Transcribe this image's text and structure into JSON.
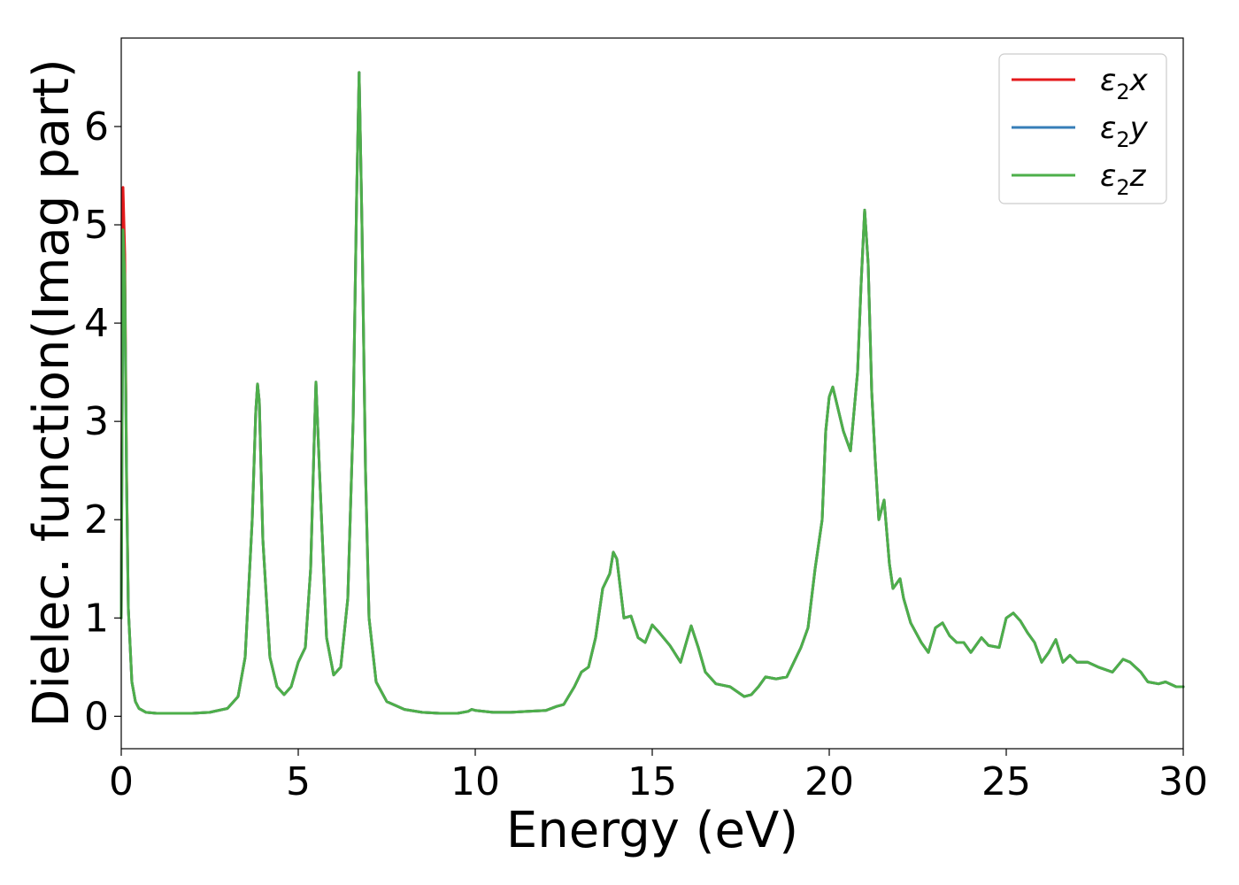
{
  "chart_data": {
    "type": "line",
    "title": "",
    "xlabel": "Energy (eV)",
    "ylabel": "Dielec. function(Imag part)",
    "xlim": [
      0,
      30
    ],
    "ylim": [
      -0.33,
      6.9
    ],
    "xticks": [
      0,
      5,
      10,
      15,
      20,
      25,
      30
    ],
    "yticks": [
      0,
      1,
      2,
      3,
      4,
      5,
      6
    ],
    "grid": false,
    "legend_position": "top-right",
    "colors": {
      "x": "#e41a1c",
      "y": "#377eb8",
      "z": "#4daf4a"
    },
    "legend": [
      {
        "sym": "ε",
        "sub": "2",
        "comp": "x"
      },
      {
        "sym": "ε",
        "sub": "2",
        "comp": "y"
      },
      {
        "sym": "ε",
        "sub": "2",
        "comp": "z"
      }
    ],
    "x": [
      0.0,
      0.05,
      0.1,
      0.15,
      0.2,
      0.3,
      0.4,
      0.5,
      0.7,
      1.0,
      1.5,
      2.0,
      2.5,
      3.0,
      3.3,
      3.5,
      3.7,
      3.8,
      3.85,
      3.9,
      4.0,
      4.2,
      4.4,
      4.6,
      4.8,
      5.0,
      5.2,
      5.35,
      5.45,
      5.5,
      5.6,
      5.8,
      6.0,
      6.2,
      6.4,
      6.55,
      6.65,
      6.72,
      6.8,
      6.9,
      7.0,
      7.2,
      7.5,
      8.0,
      8.5,
      9.0,
      9.5,
      9.8,
      9.9,
      10.0,
      10.5,
      11.0,
      11.5,
      12.0,
      12.3,
      12.5,
      12.8,
      13.0,
      13.2,
      13.4,
      13.6,
      13.8,
      13.9,
      14.0,
      14.2,
      14.4,
      14.6,
      14.8,
      15.0,
      15.2,
      15.5,
      15.8,
      16.0,
      16.1,
      16.3,
      16.5,
      16.8,
      17.2,
      17.6,
      17.8,
      18.0,
      18.2,
      18.5,
      18.8,
      19.0,
      19.2,
      19.4,
      19.6,
      19.8,
      19.9,
      20.0,
      20.1,
      20.2,
      20.4,
      20.6,
      20.8,
      20.9,
      21.0,
      21.1,
      21.2,
      21.3,
      21.4,
      21.55,
      21.7,
      21.8,
      22.0,
      22.1,
      22.3,
      22.6,
      22.8,
      23.0,
      23.2,
      23.4,
      23.6,
      23.8,
      24.0,
      24.3,
      24.5,
      24.8,
      25.0,
      25.2,
      25.4,
      25.6,
      25.8,
      26.0,
      26.2,
      26.4,
      26.6,
      26.8,
      27.0,
      27.3,
      27.6,
      28.0,
      28.3,
      28.5,
      28.8,
      29.0,
      29.3,
      29.5,
      29.8,
      30.0
    ],
    "series": [
      {
        "name": "x",
        "values": [
          1.0,
          5.38,
          4.7,
          2.5,
          1.1,
          0.35,
          0.15,
          0.08,
          0.04,
          0.03,
          0.03,
          0.03,
          0.04,
          0.08,
          0.2,
          0.6,
          2.0,
          3.1,
          3.38,
          3.2,
          1.8,
          0.6,
          0.3,
          0.22,
          0.3,
          0.55,
          0.7,
          1.5,
          2.8,
          3.4,
          2.5,
          0.8,
          0.42,
          0.5,
          1.2,
          3.0,
          5.3,
          6.55,
          5.0,
          2.5,
          1.0,
          0.35,
          0.15,
          0.07,
          0.04,
          0.03,
          0.03,
          0.05,
          0.07,
          0.06,
          0.04,
          0.04,
          0.05,
          0.06,
          0.1,
          0.12,
          0.3,
          0.45,
          0.5,
          0.8,
          1.3,
          1.45,
          1.67,
          1.6,
          1.0,
          1.02,
          0.8,
          0.75,
          0.93,
          0.85,
          0.72,
          0.55,
          0.8,
          0.92,
          0.7,
          0.45,
          0.33,
          0.3,
          0.2,
          0.22,
          0.3,
          0.4,
          0.38,
          0.4,
          0.55,
          0.7,
          0.9,
          1.5,
          2.0,
          2.9,
          3.25,
          3.35,
          3.2,
          2.9,
          2.7,
          3.5,
          4.4,
          5.15,
          4.6,
          3.3,
          2.6,
          2.0,
          2.2,
          1.55,
          1.3,
          1.4,
          1.2,
          0.95,
          0.75,
          0.65,
          0.9,
          0.95,
          0.82,
          0.75,
          0.75,
          0.65,
          0.8,
          0.72,
          0.7,
          1.0,
          1.05,
          0.97,
          0.85,
          0.75,
          0.55,
          0.65,
          0.78,
          0.55,
          0.62,
          0.55,
          0.55,
          0.5,
          0.45,
          0.58,
          0.55,
          0.45,
          0.35,
          0.33,
          0.35,
          0.3,
          0.3
        ]
      },
      {
        "name": "y",
        "values": [
          1.0,
          4.9,
          4.4,
          2.4,
          1.1,
          0.35,
          0.15,
          0.08,
          0.04,
          0.03,
          0.03,
          0.03,
          0.04,
          0.08,
          0.2,
          0.6,
          2.0,
          3.1,
          3.38,
          3.2,
          1.8,
          0.6,
          0.3,
          0.22,
          0.3,
          0.55,
          0.7,
          1.5,
          2.8,
          3.4,
          2.5,
          0.8,
          0.42,
          0.5,
          1.2,
          3.0,
          5.3,
          6.55,
          5.0,
          2.5,
          1.0,
          0.35,
          0.15,
          0.07,
          0.04,
          0.03,
          0.03,
          0.05,
          0.07,
          0.06,
          0.04,
          0.04,
          0.05,
          0.06,
          0.1,
          0.12,
          0.3,
          0.45,
          0.5,
          0.8,
          1.3,
          1.45,
          1.67,
          1.6,
          1.0,
          1.02,
          0.8,
          0.75,
          0.93,
          0.85,
          0.72,
          0.55,
          0.8,
          0.92,
          0.7,
          0.45,
          0.33,
          0.3,
          0.2,
          0.22,
          0.3,
          0.4,
          0.38,
          0.4,
          0.55,
          0.7,
          0.9,
          1.5,
          2.0,
          2.9,
          3.25,
          3.35,
          3.2,
          2.9,
          2.7,
          3.5,
          4.4,
          5.15,
          4.6,
          3.3,
          2.6,
          2.0,
          2.2,
          1.55,
          1.3,
          1.4,
          1.2,
          0.95,
          0.75,
          0.65,
          0.9,
          0.95,
          0.82,
          0.75,
          0.75,
          0.65,
          0.8,
          0.72,
          0.7,
          1.0,
          1.05,
          0.97,
          0.85,
          0.75,
          0.55,
          0.65,
          0.78,
          0.55,
          0.62,
          0.55,
          0.55,
          0.5,
          0.45,
          0.58,
          0.55,
          0.45,
          0.35,
          0.33,
          0.35,
          0.3,
          0.3
        ]
      },
      {
        "name": "z",
        "values": [
          1.0,
          4.95,
          4.45,
          2.4,
          1.1,
          0.35,
          0.15,
          0.08,
          0.04,
          0.03,
          0.03,
          0.03,
          0.04,
          0.08,
          0.2,
          0.6,
          2.0,
          3.1,
          3.38,
          3.2,
          1.8,
          0.6,
          0.3,
          0.22,
          0.3,
          0.55,
          0.7,
          1.5,
          2.8,
          3.4,
          2.5,
          0.8,
          0.42,
          0.5,
          1.2,
          3.0,
          5.3,
          6.55,
          5.0,
          2.5,
          1.0,
          0.35,
          0.15,
          0.07,
          0.04,
          0.03,
          0.03,
          0.05,
          0.07,
          0.06,
          0.04,
          0.04,
          0.05,
          0.06,
          0.1,
          0.12,
          0.3,
          0.45,
          0.5,
          0.8,
          1.3,
          1.45,
          1.67,
          1.6,
          1.0,
          1.02,
          0.8,
          0.75,
          0.93,
          0.85,
          0.72,
          0.55,
          0.8,
          0.92,
          0.7,
          0.45,
          0.33,
          0.3,
          0.2,
          0.22,
          0.3,
          0.4,
          0.38,
          0.4,
          0.55,
          0.7,
          0.9,
          1.5,
          2.0,
          2.9,
          3.25,
          3.35,
          3.2,
          2.9,
          2.7,
          3.5,
          4.4,
          5.15,
          4.6,
          3.3,
          2.6,
          2.0,
          2.2,
          1.55,
          1.3,
          1.4,
          1.2,
          0.95,
          0.75,
          0.65,
          0.9,
          0.95,
          0.82,
          0.75,
          0.75,
          0.65,
          0.8,
          0.72,
          0.7,
          1.0,
          1.05,
          0.97,
          0.85,
          0.75,
          0.55,
          0.65,
          0.78,
          0.55,
          0.62,
          0.55,
          0.55,
          0.5,
          0.45,
          0.58,
          0.55,
          0.45,
          0.35,
          0.33,
          0.35,
          0.3,
          0.3
        ]
      }
    ]
  }
}
